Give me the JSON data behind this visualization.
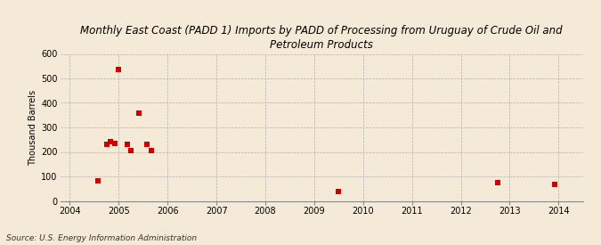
{
  "title": "Monthly East Coast (PADD 1) Imports by PADD of Processing from Uruguay of Crude Oil and\nPetroleum Products",
  "ylabel": "Thousand Barrels",
  "source": "Source: U.S. Energy Information Administration",
  "background_color": "#f5ead8",
  "xlim": [
    2003.8,
    2014.5
  ],
  "ylim": [
    0,
    600
  ],
  "yticks": [
    0,
    100,
    200,
    300,
    400,
    500,
    600
  ],
  "xticks": [
    2004,
    2005,
    2006,
    2007,
    2008,
    2009,
    2010,
    2011,
    2012,
    2013,
    2014
  ],
  "scatter_x": [
    2004.58,
    2004.75,
    2004.83,
    2004.92,
    2005.0,
    2005.17,
    2005.25,
    2005.42,
    2005.58,
    2005.67,
    2009.5,
    2012.75,
    2013.92
  ],
  "scatter_y": [
    82,
    231,
    242,
    233,
    535,
    232,
    205,
    359,
    232,
    205,
    38,
    75,
    68
  ],
  "marker_color": "#cc0000",
  "marker_size": 4
}
